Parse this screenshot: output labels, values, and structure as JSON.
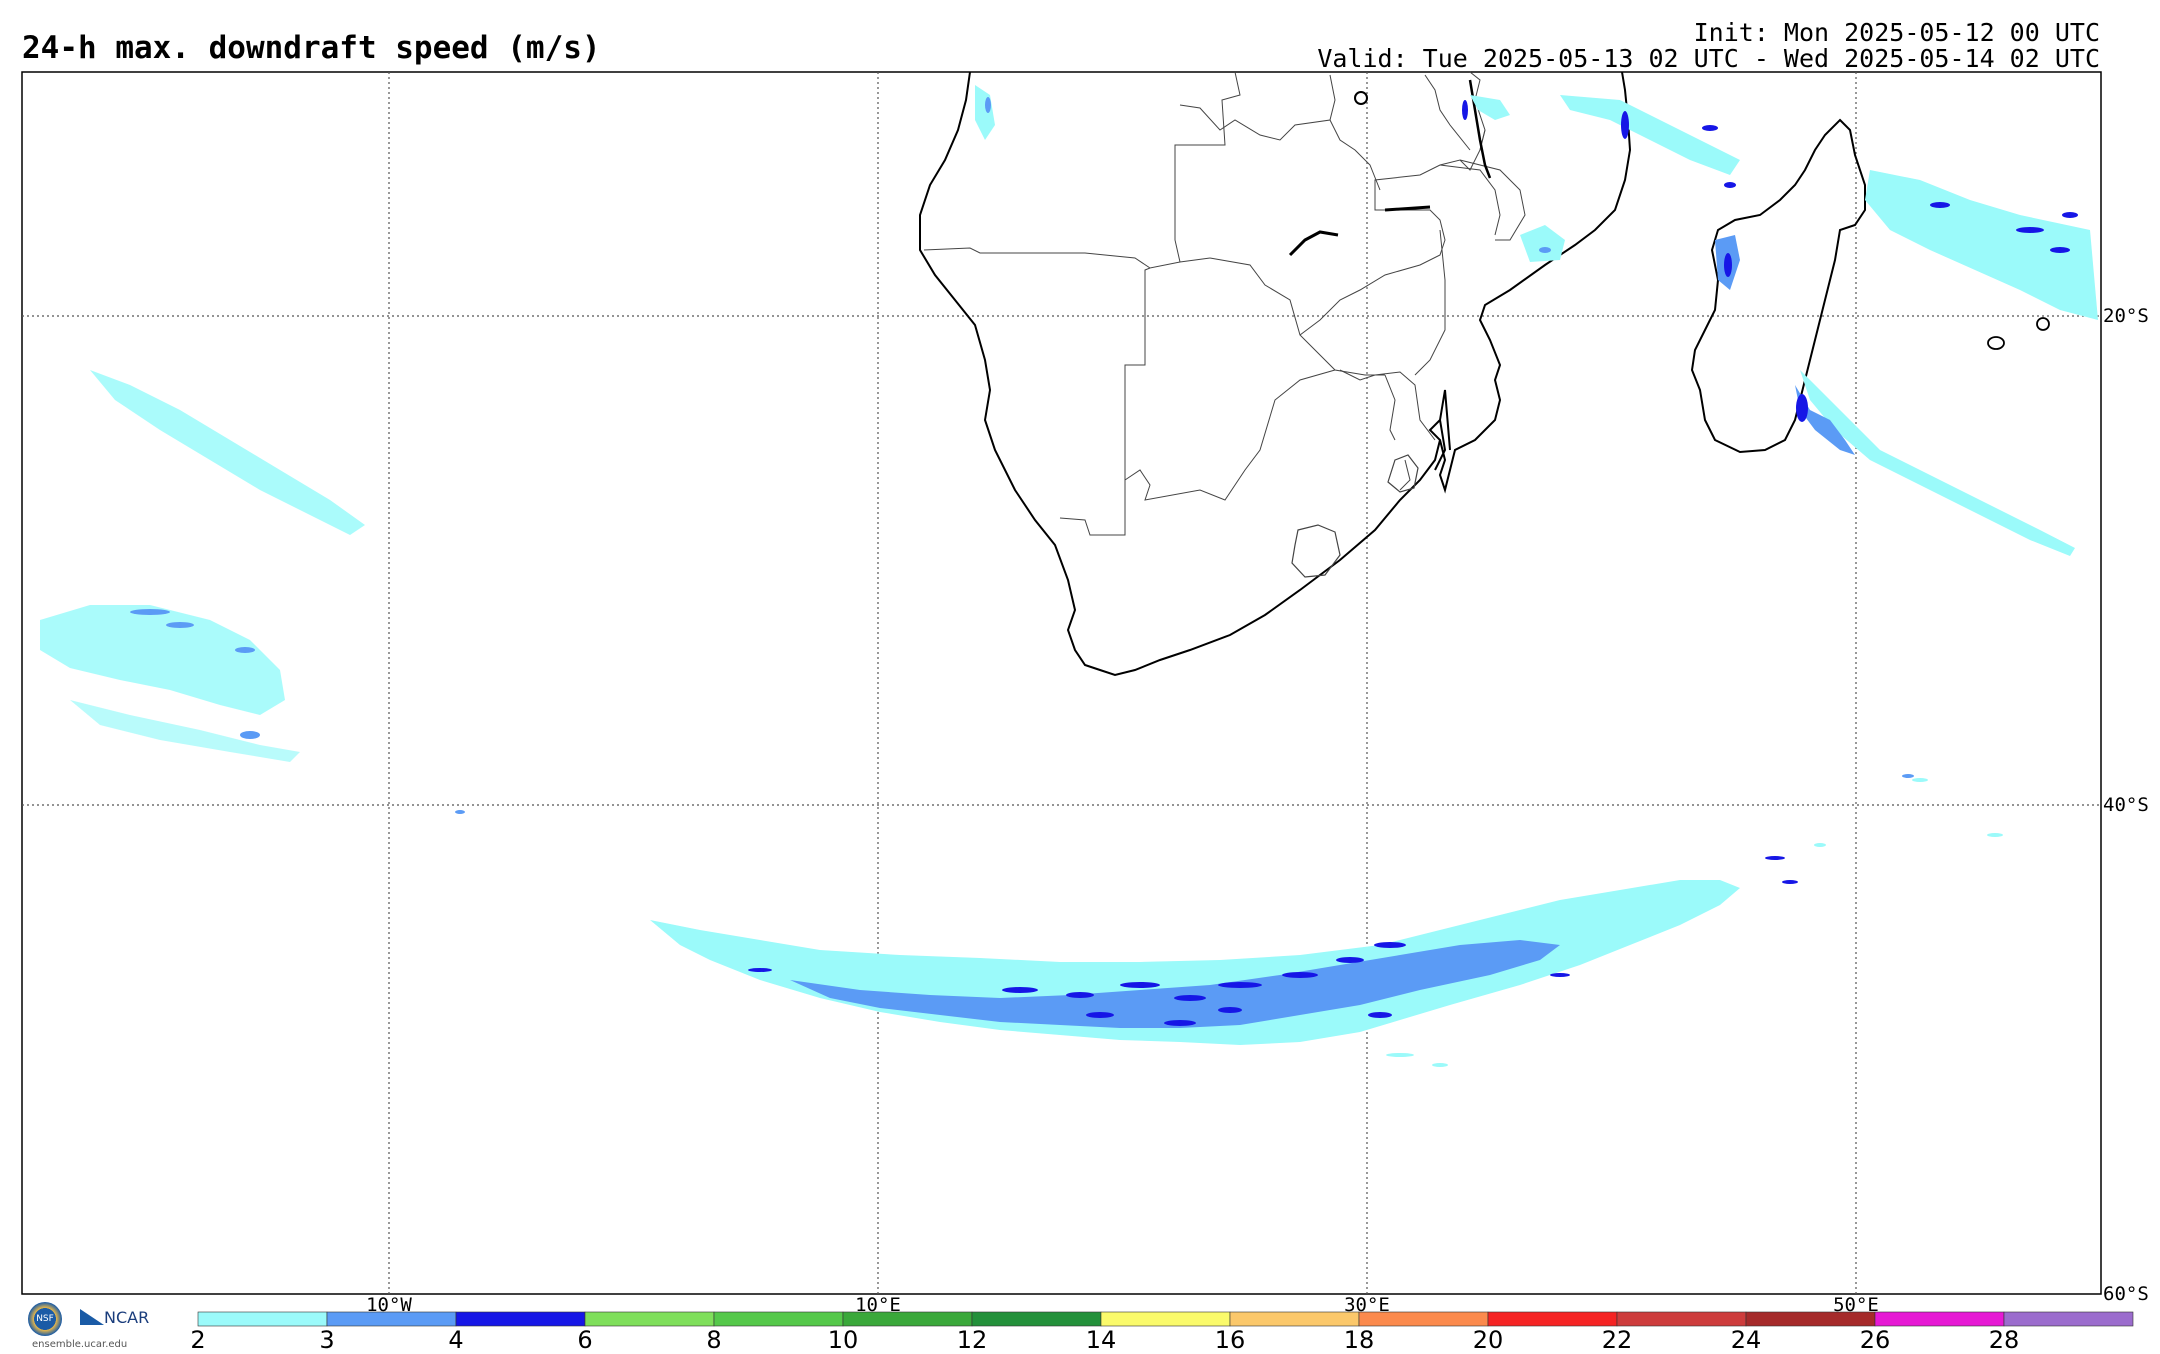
{
  "header": {
    "title": "24-h max. downdraft speed (m/s)",
    "init": "Init: Mon 2025-05-12 00 UTC",
    "valid": "Valid: Tue 2025-05-13 02 UTC - Wed 2025-05-14 02 UTC"
  },
  "map": {
    "lat_labels": [
      "20°S",
      "40°S",
      "60°S"
    ],
    "lon_labels": [
      "10°W",
      "10°E",
      "30°E",
      "50°E"
    ]
  },
  "colorbar": {
    "ticks": [
      "2",
      "3",
      "4",
      "6",
      "8",
      "10",
      "12",
      "14",
      "16",
      "18",
      "20",
      "22",
      "24",
      "26",
      "28"
    ],
    "colors": [
      "#9bfafa",
      "#5b9bf5",
      "#1616e6",
      "#7fdf5b",
      "#55c84a",
      "#3aa83a",
      "#23903a",
      "#fafa6b",
      "#fbc86b",
      "#fb8a4d",
      "#f52323",
      "#cd3c3c",
      "#a52a2a",
      "#e619d4",
      "#9b6ccd"
    ]
  },
  "logos": {
    "nsf": "NSF",
    "ncar": "NCAR",
    "site": "ensemble.ucar.edu"
  }
}
